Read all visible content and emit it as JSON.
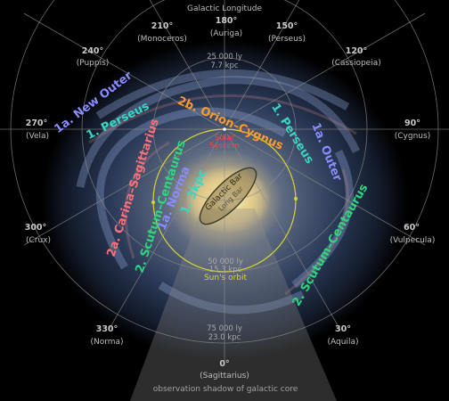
{
  "title": "Galactic Longitude",
  "longitudes": [
    {
      "deg": "180°",
      "name": "(Auriga)"
    },
    {
      "deg": "150°",
      "name": "(Perseus)"
    },
    {
      "deg": "120°",
      "name": "(Cassiopeia)"
    },
    {
      "deg": "90°",
      "name": "(Cygnus)"
    },
    {
      "deg": "60°",
      "name": "(Vulpecula)"
    },
    {
      "deg": "30°",
      "name": "(Aquila)"
    },
    {
      "deg": "0°",
      "name": "(Sagittarius)"
    },
    {
      "deg": "330°",
      "name": "(Norma)"
    },
    {
      "deg": "300°",
      "name": "(Crux)"
    },
    {
      "deg": "270°",
      "name": "(Vela)"
    },
    {
      "deg": "240°",
      "name": "(Puppis)"
    },
    {
      "deg": "210°",
      "name": "(Monoceros)"
    }
  ],
  "distances": [
    {
      "ly": "25 000 ly",
      "kpc": "7.7 kpc"
    },
    {
      "ly": "50 000 ly",
      "kpc": "15.3 kpc"
    },
    {
      "ly": "75 000 ly",
      "kpc": "23.0 kpc"
    }
  ],
  "arms": {
    "new_outer": "1a. New Outer",
    "perseus_left": "1. Perseus",
    "orion_cygnus": "2b. Orion–Cygnus",
    "perseus_right": "1. Perseus",
    "outer": "1a. Outer",
    "carina_sagittarius": "2a. Carina–Sagittarius",
    "scutum_centaurus_left": "2. Scutum–Centaurus",
    "norma": "1a. Norma",
    "three_kpc": "1. 3kpc",
    "scutum_centaurus_right": "2. Scutum–Centaurus"
  },
  "bar": {
    "galactic_bar": "Galactic Bar",
    "long_bar": "Long Bar"
  },
  "solar_system": [
    "Solar",
    "System"
  ],
  "suns_orbit": "Sun's orbit",
  "shadow": "observation shadow of galactic core",
  "colors": {
    "blue_arm": "#8a8cff",
    "cyan_arm": "#3ad6c0",
    "orange_arm": "#ff9a2a",
    "pink_arm": "#ff6f7a",
    "green_arm": "#2fd67c",
    "solar": "#ff4040",
    "orbit": "#d6d634",
    "grid": "#8c8c8c"
  }
}
